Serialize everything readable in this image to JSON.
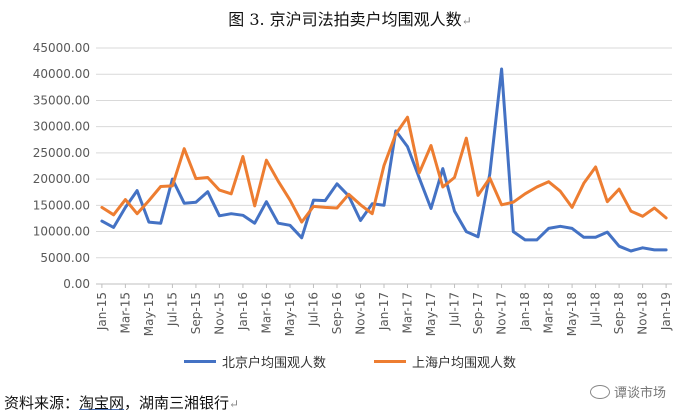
{
  "title": "图 3.  京沪司法拍卖户均围观人数",
  "title_mark": "↵",
  "source": {
    "prefix": "资料来源：",
    "link": "淘宝网",
    "rest": "，湖南三湘银行",
    "mark": "↵"
  },
  "watermark": "谭谈市场",
  "colors": {
    "beijing": "#4472C4",
    "shanghai": "#ED7D31",
    "grid": "#d9d9d9",
    "axis_text": "#595959"
  },
  "chart_data": {
    "type": "line",
    "ylim": [
      0,
      45000
    ],
    "y_ticks": [
      "0.00",
      "5000.00",
      "10000.00",
      "15000.00",
      "20000.00",
      "25000.00",
      "30000.00",
      "35000.00",
      "40000.00",
      "45000.00"
    ],
    "grid": "horizontal",
    "legend_position": "bottom",
    "months": [
      "Jan-15",
      "Feb-15",
      "Mar-15",
      "Apr-15",
      "May-15",
      "Jun-15",
      "Jul-15",
      "Aug-15",
      "Sep-15",
      "Oct-15",
      "Nov-15",
      "Dec-15",
      "Jan-16",
      "Feb-16",
      "Mar-16",
      "Apr-16",
      "May-16",
      "Jun-16",
      "Jul-16",
      "Aug-16",
      "Sep-16",
      "Oct-16",
      "Nov-16",
      "Dec-16",
      "Jan-17",
      "Feb-17",
      "Mar-17",
      "Apr-17",
      "May-17",
      "Jun-17",
      "Jul-17",
      "Aug-17",
      "Sep-17",
      "Oct-17",
      "Nov-17",
      "Dec-17",
      "Jan-18",
      "Feb-18",
      "Mar-18",
      "Apr-18",
      "May-18",
      "Jun-18",
      "Jul-18",
      "Aug-18",
      "Sep-18",
      "Oct-18",
      "Nov-18",
      "Dec-18",
      "Jan-19"
    ],
    "x_labels": [
      "Jan-15",
      "Mar-15",
      "May-15",
      "Jul-15",
      "Sep-15",
      "Nov-15",
      "Jan-16",
      "Mar-16",
      "May-16",
      "Jul-16",
      "Sep-16",
      "Nov-16",
      "Jan-17",
      "Mar-17",
      "May-17",
      "Jul-17",
      "Sep-17",
      "Nov-17",
      "Jan-18",
      "Mar-18",
      "May-18",
      "Jul-18",
      "Sep-18",
      "Nov-18",
      "Jan-19"
    ],
    "series": [
      {
        "name": "北京户均围观人数",
        "values": [
          12000,
          10800,
          14600,
          17800,
          11800,
          11600,
          20000,
          15400,
          15600,
          17600,
          13000,
          13400,
          13100,
          11600,
          15700,
          11600,
          11200,
          8800,
          16000,
          15900,
          19100,
          16800,
          12100,
          15300,
          15000,
          29200,
          26200,
          20200,
          14400,
          22000,
          13900,
          10000,
          9000,
          21000,
          41000,
          10000,
          8400,
          8400,
          10600,
          11000,
          10600,
          8900,
          8900,
          9900,
          7200,
          6300,
          6900,
          6500,
          6500
        ]
      },
      {
        "name": "上海户均围观人数",
        "values": [
          14600,
          13200,
          16100,
          13400,
          15900,
          18600,
          18700,
          25800,
          20100,
          20300,
          17900,
          17200,
          24300,
          14900,
          23600,
          19600,
          16000,
          11800,
          14800,
          14600,
          14500,
          17100,
          15100,
          13400,
          22600,
          28600,
          31800,
          21200,
          26400,
          18500,
          20300,
          27800,
          16900,
          20200,
          15100,
          15600,
          17200,
          18500,
          19500,
          17700,
          14600,
          19200,
          22300,
          15700,
          18100,
          13900,
          12900,
          14500,
          12600
        ]
      }
    ]
  }
}
